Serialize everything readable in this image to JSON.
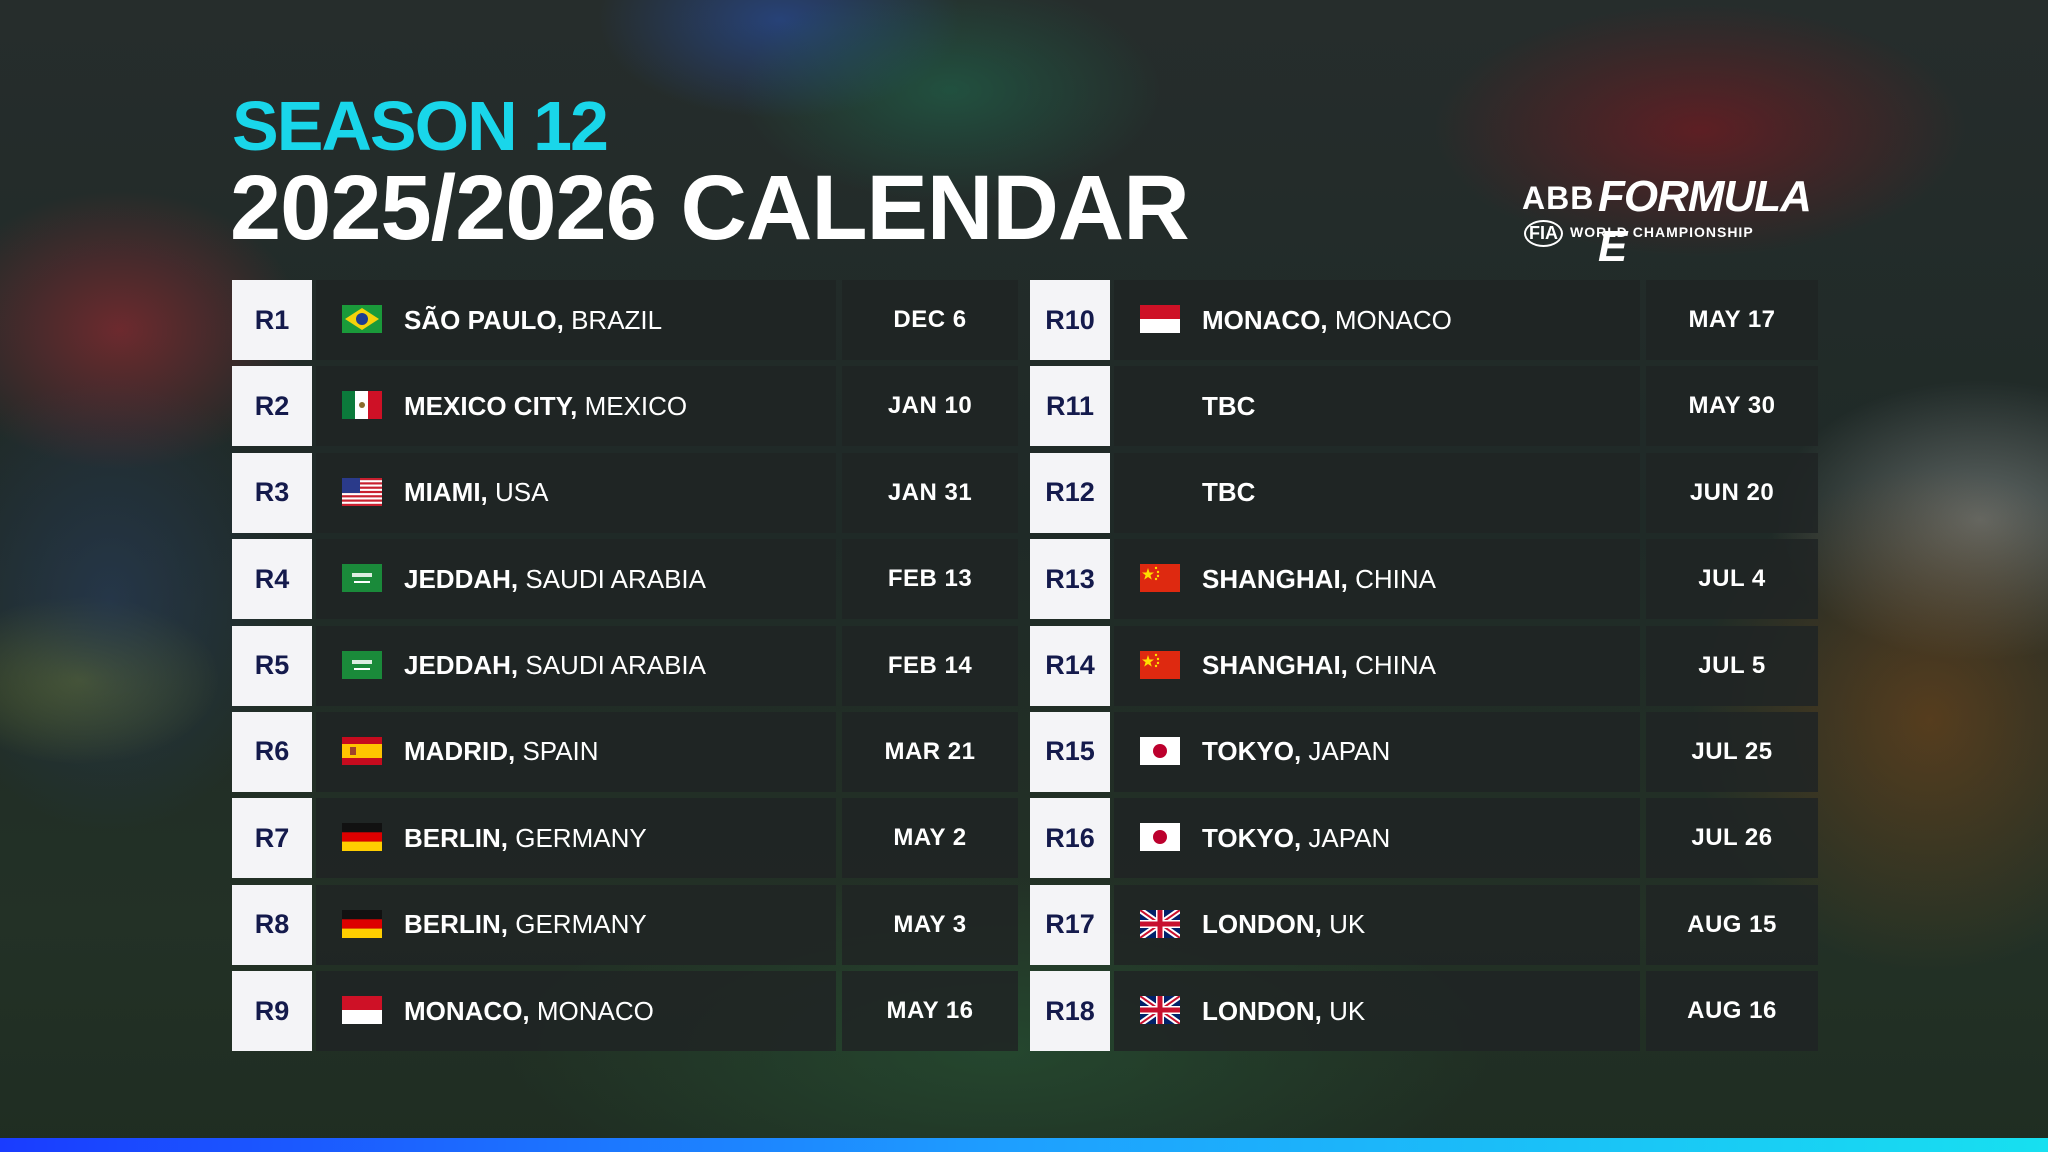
{
  "header": {
    "season": "SEASON 12",
    "title": "2025/2026 CALENDAR"
  },
  "brand": {
    "abb": "ABB",
    "series": "FORMULA E",
    "fia": "FIA",
    "championship": "WORLD CHAMPIONSHIP"
  },
  "colors": {
    "accent_cyan": "#19d6ea",
    "round_text": "#141a4c",
    "panel": "#202424"
  },
  "rounds_left": [
    {
      "round": "R1",
      "city": "SÃO PAULO,",
      "country": " BRAZIL",
      "date": "DEC 6",
      "flag": "brazil-flag-icon"
    },
    {
      "round": "R2",
      "city": "MEXICO CITY,",
      "country": " MEXICO",
      "date": "JAN 10",
      "flag": "mexico-flag-icon"
    },
    {
      "round": "R3",
      "city": "MIAMI,",
      "country": " USA",
      "date": "JAN 31",
      "flag": "usa-flag-icon"
    },
    {
      "round": "R4",
      "city": "JEDDAH,",
      "country": " SAUDI ARABIA",
      "date": "FEB 13",
      "flag": "saudi-flag-icon"
    },
    {
      "round": "R5",
      "city": "JEDDAH,",
      "country": " SAUDI ARABIA",
      "date": "FEB 14",
      "flag": "saudi-flag-icon"
    },
    {
      "round": "R6",
      "city": "MADRID,",
      "country": " SPAIN",
      "date": "MAR 21",
      "flag": "spain-flag-icon"
    },
    {
      "round": "R7",
      "city": "BERLIN,",
      "country": " GERMANY",
      "date": "MAY 2",
      "flag": "germany-flag-icon"
    },
    {
      "round": "R8",
      "city": "BERLIN,",
      "country": " GERMANY",
      "date": "MAY 3",
      "flag": "germany-flag-icon"
    },
    {
      "round": "R9",
      "city": "MONACO,",
      "country": " MONACO",
      "date": "MAY 16",
      "flag": "monaco-flag-icon"
    }
  ],
  "rounds_right": [
    {
      "round": "R10",
      "city": "MONACO,",
      "country": " MONACO",
      "date": "MAY 17",
      "flag": "monaco-flag-icon"
    },
    {
      "round": "R11",
      "city": "TBC",
      "country": "",
      "date": "MAY 30",
      "flag": ""
    },
    {
      "round": "R12",
      "city": "TBC",
      "country": "",
      "date": "JUN 20",
      "flag": ""
    },
    {
      "round": "R13",
      "city": "SHANGHAI,",
      "country": " CHINA",
      "date": "JUL 4",
      "flag": "china-flag-icon"
    },
    {
      "round": "R14",
      "city": "SHANGHAI,",
      "country": " CHINA",
      "date": "JUL 5",
      "flag": "china-flag-icon"
    },
    {
      "round": "R15",
      "city": "TOKYO,",
      "country": " JAPAN",
      "date": "JUL 25",
      "flag": "japan-flag-icon"
    },
    {
      "round": "R16",
      "city": "TOKYO,",
      "country": " JAPAN",
      "date": "JUL 26",
      "flag": "japan-flag-icon"
    },
    {
      "round": "R17",
      "city": "LONDON,",
      "country": " UK",
      "date": "AUG 15",
      "flag": "uk-flag-icon"
    },
    {
      "round": "R18",
      "city": "LONDON,",
      "country": " UK",
      "date": "AUG 16",
      "flag": "uk-flag-icon"
    }
  ]
}
